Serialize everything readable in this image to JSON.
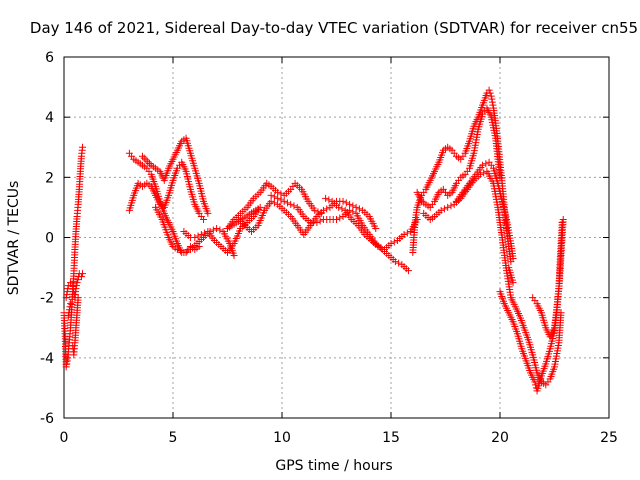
{
  "chart_data": {
    "type": "scatter",
    "title": "Day 146 of 2021, Sidereal Day-to-day VTEC variation (SDTVAR) for receiver cn55",
    "xlabel": "GPS time / hours",
    "ylabel": "SDTVAR / TECUs",
    "xlim": [
      0,
      25
    ],
    "ylim": [
      -6,
      6
    ],
    "xticks": [
      0,
      5,
      10,
      15,
      20,
      25
    ],
    "yticks": [
      -6,
      -4,
      -2,
      0,
      2,
      4,
      6
    ],
    "xtick_labels": [
      "0",
      "5",
      "10",
      "15",
      "20",
      "25"
    ],
    "ytick_labels": [
      "-6",
      "-4",
      "-2",
      "0",
      "2",
      "4",
      "6"
    ],
    "grid": true,
    "marker": "+",
    "color": "#ff0000",
    "series": [
      {
        "points": [
          [
            0.0,
            -2.5
          ],
          [
            0.05,
            -3.2
          ],
          [
            0.1,
            -4.3
          ],
          [
            0.15,
            -4.1
          ],
          [
            0.2,
            -3.8
          ],
          [
            0.25,
            -3.4
          ],
          [
            0.3,
            -3.0
          ],
          [
            0.35,
            -2.4
          ],
          [
            0.4,
            -1.8
          ],
          [
            0.45,
            -1.2
          ],
          [
            0.5,
            -0.4
          ],
          [
            0.55,
            0.2
          ],
          [
            0.6,
            0.7
          ],
          [
            0.65,
            1.1
          ],
          [
            0.7,
            1.6
          ],
          [
            0.75,
            2.2
          ],
          [
            0.8,
            2.7
          ],
          [
            0.85,
            3.0
          ],
          [
            0.1,
            -2.0
          ],
          [
            0.2,
            -1.6
          ],
          [
            0.3,
            -1.5
          ],
          [
            0.4,
            -1.6
          ],
          [
            0.5,
            -2.0
          ],
          [
            0.55,
            -1.7
          ],
          [
            0.6,
            -1.5
          ],
          [
            0.7,
            -1.2
          ],
          [
            0.8,
            -1.3
          ],
          [
            0.85,
            -1.2
          ],
          [
            0.2,
            -2.6
          ],
          [
            0.3,
            -2.2
          ],
          [
            0.4,
            -3.6
          ],
          [
            0.45,
            -3.9
          ],
          [
            0.5,
            -3.5
          ],
          [
            0.55,
            -3.0
          ],
          [
            0.6,
            -2.5
          ],
          [
            0.65,
            -2.0
          ]
        ]
      },
      {
        "points": [
          [
            3.0,
            2.8
          ],
          [
            3.2,
            2.6
          ],
          [
            3.4,
            2.5
          ],
          [
            3.6,
            2.4
          ],
          [
            3.8,
            2.3
          ],
          [
            4.0,
            2.1
          ],
          [
            4.2,
            1.7
          ],
          [
            4.4,
            1.2
          ],
          [
            4.6,
            0.8
          ],
          [
            4.8,
            0.5
          ],
          [
            5.0,
            0.2
          ],
          [
            5.2,
            -0.2
          ],
          [
            5.4,
            -0.5
          ],
          [
            5.6,
            -0.5
          ],
          [
            5.8,
            -0.3
          ],
          [
            6.0,
            -0.4
          ],
          [
            6.2,
            -0.3
          ],
          [
            3.0,
            0.9
          ],
          [
            3.2,
            1.4
          ],
          [
            3.4,
            1.8
          ],
          [
            3.6,
            1.7
          ],
          [
            3.8,
            1.8
          ],
          [
            4.0,
            1.7
          ],
          [
            4.2,
            1.4
          ],
          [
            4.4,
            1.1
          ],
          [
            4.6,
            1.0
          ],
          [
            4.8,
            1.4
          ],
          [
            5.0,
            1.9
          ],
          [
            5.2,
            2.3
          ],
          [
            5.4,
            2.5
          ],
          [
            5.6,
            2.2
          ],
          [
            5.8,
            1.6
          ],
          [
            6.0,
            1.1
          ],
          [
            6.2,
            0.8
          ],
          [
            6.4,
            0.6
          ],
          [
            3.6,
            2.7
          ],
          [
            4.0,
            2.4
          ],
          [
            4.4,
            2.2
          ],
          [
            4.6,
            1.9
          ],
          [
            4.8,
            2.3
          ],
          [
            5.0,
            2.6
          ],
          [
            5.2,
            2.9
          ],
          [
            5.4,
            3.2
          ],
          [
            5.6,
            3.3
          ],
          [
            5.8,
            2.8
          ],
          [
            6.0,
            2.3
          ],
          [
            6.2,
            1.8
          ],
          [
            6.4,
            1.2
          ],
          [
            6.6,
            0.8
          ],
          [
            4.2,
            1.0
          ],
          [
            4.5,
            0.6
          ],
          [
            4.8,
            0.0
          ],
          [
            5.0,
            -0.3
          ],
          [
            5.2,
            -0.4
          ],
          [
            5.5,
            -0.5
          ],
          [
            5.8,
            -0.4
          ],
          [
            6.1,
            -0.2
          ],
          [
            6.4,
            0.0
          ],
          [
            6.7,
            0.2
          ],
          [
            7.0,
            0.3
          ],
          [
            7.3,
            0.2
          ],
          [
            7.6,
            -0.2
          ],
          [
            7.8,
            -0.6
          ],
          [
            5.5,
            0.2
          ],
          [
            5.8,
            0.0
          ],
          [
            6.0,
            0.0
          ],
          [
            6.3,
            0.1
          ],
          [
            6.6,
            0.2
          ],
          [
            6.9,
            -0.1
          ],
          [
            7.2,
            -0.3
          ],
          [
            7.5,
            -0.5
          ],
          [
            7.8,
            -0.2
          ],
          [
            8.1,
            0.3
          ],
          [
            8.4,
            0.5
          ],
          [
            8.7,
            0.7
          ],
          [
            9.0,
            1.0
          ],
          [
            7.5,
            0.3
          ],
          [
            7.8,
            0.6
          ],
          [
            8.1,
            0.8
          ],
          [
            8.4,
            1.0
          ],
          [
            8.7,
            1.3
          ],
          [
            9.0,
            1.5
          ],
          [
            9.3,
            1.8
          ],
          [
            9.5,
            1.7
          ],
          [
            9.8,
            1.5
          ],
          [
            10.1,
            1.4
          ],
          [
            10.4,
            1.6
          ],
          [
            10.6,
            1.8
          ],
          [
            10.9,
            1.6
          ],
          [
            11.2,
            1.2
          ],
          [
            11.5,
            0.9
          ],
          [
            11.8,
            0.8
          ],
          [
            8.0,
            0.6
          ],
          [
            8.3,
            0.4
          ],
          [
            8.6,
            0.2
          ],
          [
            8.9,
            0.4
          ],
          [
            9.2,
            0.9
          ],
          [
            9.5,
            1.2
          ],
          [
            9.8,
            1.1
          ],
          [
            10.1,
            0.9
          ],
          [
            10.4,
            0.7
          ],
          [
            10.7,
            0.4
          ],
          [
            11.0,
            0.1
          ],
          [
            11.3,
            0.4
          ],
          [
            11.6,
            0.7
          ],
          [
            11.9,
            0.9
          ],
          [
            12.2,
            1.0
          ],
          [
            12.5,
            1.2
          ],
          [
            12.8,
            1.2
          ],
          [
            13.1,
            1.1
          ],
          [
            13.4,
            1.0
          ],
          [
            13.7,
            0.9
          ],
          [
            14.0,
            0.7
          ],
          [
            14.3,
            0.3
          ],
          [
            9.5,
            1.4
          ],
          [
            9.8,
            1.3
          ],
          [
            10.1,
            1.2
          ],
          [
            10.4,
            1.1
          ],
          [
            10.7,
            1.0
          ],
          [
            11.0,
            0.7
          ],
          [
            11.3,
            0.5
          ],
          [
            11.6,
            0.5
          ],
          [
            11.9,
            0.6
          ],
          [
            12.2,
            0.6
          ],
          [
            12.5,
            0.6
          ],
          [
            12.8,
            0.7
          ],
          [
            13.1,
            0.9
          ],
          [
            13.4,
            0.8
          ],
          [
            13.7,
            0.4
          ],
          [
            14.0,
            0.1
          ],
          [
            14.3,
            -0.2
          ],
          [
            14.6,
            -0.4
          ],
          [
            14.9,
            -0.6
          ],
          [
            15.2,
            -0.8
          ],
          [
            15.5,
            -0.9
          ],
          [
            15.8,
            -1.1
          ],
          [
            12.0,
            1.3
          ],
          [
            12.3,
            1.2
          ],
          [
            12.6,
            1.0
          ],
          [
            12.9,
            0.9
          ],
          [
            13.2,
            0.6
          ],
          [
            13.5,
            0.4
          ],
          [
            13.8,
            0.1
          ],
          [
            14.1,
            -0.1
          ],
          [
            14.4,
            -0.3
          ],
          [
            14.7,
            -0.4
          ],
          [
            15.0,
            -0.2
          ],
          [
            15.3,
            -0.1
          ],
          [
            15.6,
            0.1
          ],
          [
            15.9,
            0.2
          ],
          [
            16.2,
            0.6
          ]
        ]
      },
      {
        "points": [
          [
            16.0,
            -0.5
          ],
          [
            16.1,
            0.5
          ],
          [
            16.2,
            1.0
          ],
          [
            16.4,
            1.4
          ],
          [
            16.6,
            1.6
          ],
          [
            16.8,
            1.9
          ],
          [
            17.0,
            2.2
          ],
          [
            17.2,
            2.5
          ],
          [
            17.4,
            2.9
          ],
          [
            17.6,
            3.0
          ],
          [
            17.8,
            2.9
          ],
          [
            18.0,
            2.7
          ],
          [
            18.2,
            2.6
          ],
          [
            18.4,
            2.8
          ],
          [
            18.6,
            3.2
          ],
          [
            18.8,
            3.7
          ],
          [
            19.0,
            4.0
          ],
          [
            19.2,
            4.4
          ],
          [
            19.4,
            4.8
          ],
          [
            19.5,
            4.9
          ],
          [
            19.6,
            4.7
          ],
          [
            19.7,
            4.3
          ],
          [
            19.8,
            3.8
          ],
          [
            19.9,
            3.2
          ],
          [
            20.0,
            2.5
          ],
          [
            20.1,
            1.8
          ],
          [
            20.2,
            1.0
          ],
          [
            20.3,
            0.3
          ],
          [
            20.4,
            -0.3
          ],
          [
            20.5,
            -0.8
          ],
          [
            16.2,
            1.5
          ],
          [
            16.4,
            1.2
          ],
          [
            16.6,
            1.1
          ],
          [
            16.8,
            1.0
          ],
          [
            17.0,
            1.2
          ],
          [
            17.2,
            1.5
          ],
          [
            17.4,
            1.6
          ],
          [
            17.6,
            1.4
          ],
          [
            17.8,
            1.5
          ],
          [
            18.0,
            1.8
          ],
          [
            18.2,
            2.0
          ],
          [
            18.4,
            2.1
          ],
          [
            18.6,
            2.3
          ],
          [
            18.8,
            2.8
          ],
          [
            19.0,
            3.6
          ],
          [
            19.2,
            4.1
          ],
          [
            19.4,
            4.3
          ],
          [
            19.6,
            4.0
          ],
          [
            19.8,
            3.3
          ],
          [
            20.0,
            2.0
          ],
          [
            20.2,
            0.5
          ],
          [
            20.4,
            -1.0
          ],
          [
            20.6,
            -1.5
          ],
          [
            16.5,
            0.8
          ],
          [
            16.8,
            0.6
          ],
          [
            17.0,
            0.7
          ],
          [
            17.3,
            0.9
          ],
          [
            17.6,
            1.0
          ],
          [
            17.9,
            1.1
          ],
          [
            18.2,
            1.3
          ],
          [
            18.5,
            1.6
          ],
          [
            18.8,
            1.9
          ],
          [
            19.1,
            2.1
          ],
          [
            19.4,
            2.2
          ],
          [
            19.7,
            1.8
          ],
          [
            19.9,
            1.0
          ],
          [
            20.1,
            0.0
          ],
          [
            20.3,
            -1.1
          ],
          [
            20.5,
            -2.0
          ],
          [
            20.7,
            -2.3
          ],
          [
            20.9,
            -2.6
          ],
          [
            21.1,
            -3.0
          ],
          [
            21.3,
            -3.4
          ],
          [
            21.5,
            -3.9
          ],
          [
            21.7,
            -4.5
          ],
          [
            21.9,
            -4.8
          ],
          [
            22.1,
            -4.9
          ],
          [
            22.3,
            -4.7
          ],
          [
            22.5,
            -4.3
          ],
          [
            22.7,
            -3.5
          ],
          [
            22.8,
            -2.5
          ],
          [
            20.0,
            -1.8
          ],
          [
            20.2,
            -2.2
          ],
          [
            20.4,
            -2.5
          ],
          [
            20.6,
            -2.8
          ],
          [
            20.8,
            -3.2
          ],
          [
            21.0,
            -3.7
          ],
          [
            21.2,
            -4.1
          ],
          [
            21.4,
            -4.5
          ],
          [
            21.6,
            -4.8
          ],
          [
            21.7,
            -5.1
          ],
          [
            21.9,
            -4.6
          ],
          [
            22.1,
            -4.2
          ],
          [
            22.3,
            -3.7
          ],
          [
            22.5,
            -3.1
          ],
          [
            22.6,
            -2.5
          ],
          [
            22.7,
            -1.7
          ],
          [
            22.75,
            -0.9
          ],
          [
            22.8,
            -0.2
          ],
          [
            22.85,
            0.5
          ],
          [
            21.5,
            -2.0
          ],
          [
            21.7,
            -2.2
          ],
          [
            21.9,
            -2.5
          ],
          [
            22.1,
            -3.0
          ],
          [
            22.3,
            -3.3
          ],
          [
            22.5,
            -3.0
          ],
          [
            22.6,
            -2.4
          ],
          [
            22.7,
            -1.7
          ],
          [
            22.75,
            -1.2
          ],
          [
            22.8,
            -0.6
          ],
          [
            22.85,
            0.0
          ],
          [
            22.9,
            0.6
          ],
          [
            18.0,
            1.2
          ],
          [
            18.3,
            1.5
          ],
          [
            18.6,
            1.8
          ],
          [
            18.9,
            2.1
          ],
          [
            19.2,
            2.4
          ],
          [
            19.5,
            2.5
          ],
          [
            19.7,
            2.3
          ],
          [
            19.9,
            1.8
          ],
          [
            20.1,
            1.2
          ],
          [
            20.3,
            0.6
          ],
          [
            20.5,
            -0.2
          ],
          [
            20.6,
            -0.7
          ]
        ]
      }
    ]
  }
}
